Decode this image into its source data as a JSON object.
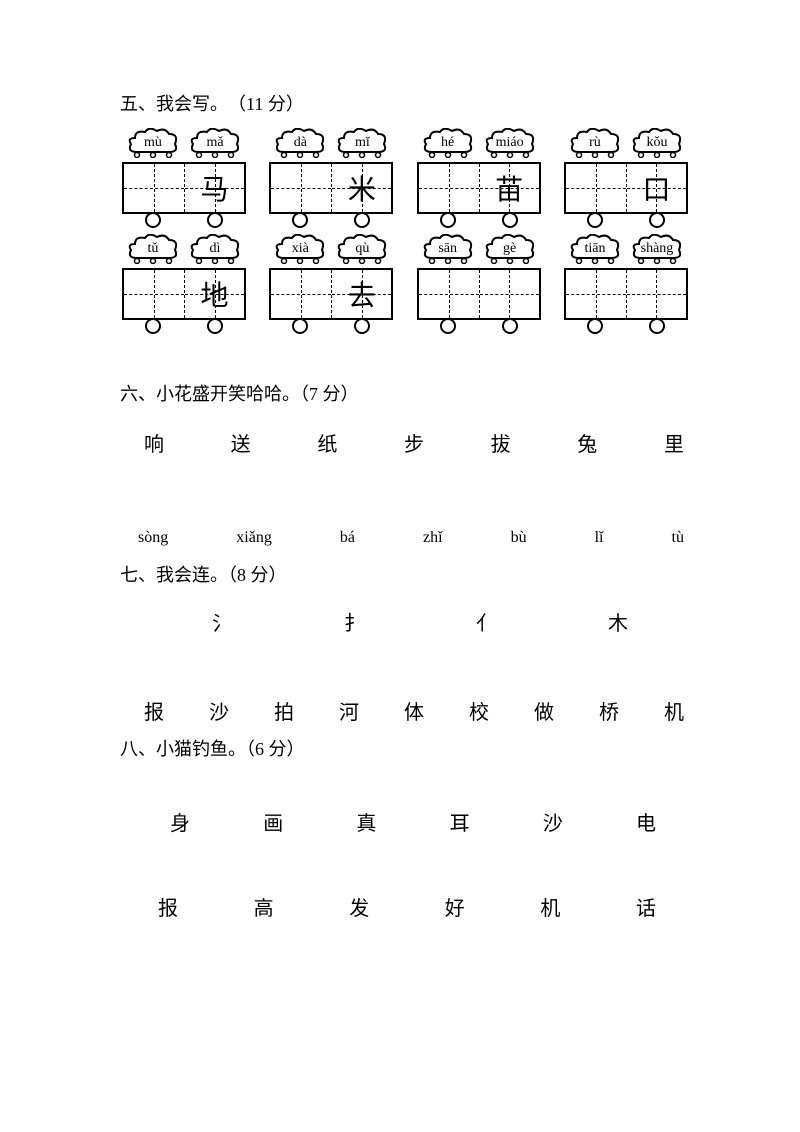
{
  "section5": {
    "heading": "五、我会写。　（11 分）",
    "rows": [
      [
        {
          "pinyin": [
            "mù",
            "mǎ"
          ],
          "chars": [
            "",
            "马"
          ]
        },
        {
          "pinyin": [
            "dà",
            "mǐ"
          ],
          "chars": [
            "",
            "米"
          ]
        },
        {
          "pinyin": [
            "hé",
            "miáo"
          ],
          "chars": [
            "",
            "苗"
          ]
        },
        {
          "pinyin": [
            "rù",
            "kǒu"
          ],
          "chars": [
            "",
            "口"
          ]
        }
      ],
      [
        {
          "pinyin": [
            "tǔ",
            "dì"
          ],
          "chars": [
            "",
            "地"
          ]
        },
        {
          "pinyin": [
            "xià",
            "qù"
          ],
          "chars": [
            "",
            "去"
          ]
        },
        {
          "pinyin": [
            "sān",
            "gè"
          ],
          "chars": [
            "",
            ""
          ]
        },
        {
          "pinyin": [
            "tiān",
            "shàng"
          ],
          "chars": [
            "",
            ""
          ]
        }
      ]
    ]
  },
  "section6": {
    "heading": "六、小花盛开笑哈哈。（7 分）",
    "chars": [
      "响",
      "送",
      "纸",
      "步",
      "拔",
      "兔",
      "里"
    ],
    "pinyin": [
      "sòng",
      "xiǎng",
      "bá",
      "zhǐ",
      "bù",
      "lǐ",
      "tù"
    ]
  },
  "section7": {
    "heading": "七、我会连。（8 分）",
    "radicals": [
      "氵",
      "扌",
      "亻",
      "木"
    ],
    "chars": [
      "报",
      "沙",
      "拍",
      "河",
      "体",
      "校",
      "做",
      "桥",
      "机"
    ]
  },
  "section8": {
    "heading": "八、小猫钓鱼。（6 分）",
    "row1": [
      "身",
      "画",
      "真",
      "耳",
      "沙",
      "电"
    ],
    "row2": [
      "报",
      "高",
      "发",
      "好",
      "机",
      "话"
    ]
  },
  "style": {
    "background": "#ffffff",
    "text_color": "#000000",
    "heading_fontsize": 18,
    "char_fontsize": 20,
    "pinyin_fontsize": 16,
    "cart_char_fontsize": 28,
    "font_family": "SimSun"
  }
}
